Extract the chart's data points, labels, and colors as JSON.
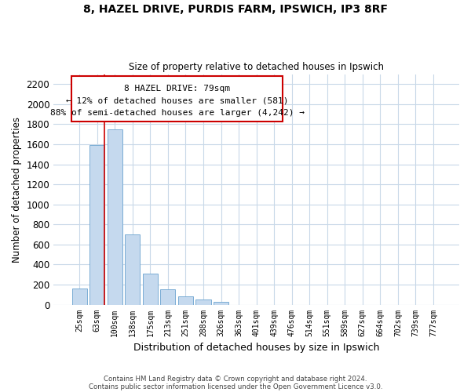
{
  "title1": "8, HAZEL DRIVE, PURDIS FARM, IPSWICH, IP3 8RF",
  "title2": "Size of property relative to detached houses in Ipswich",
  "xlabel": "Distribution of detached houses by size in Ipswich",
  "ylabel": "Number of detached properties",
  "bar_labels": [
    "25sqm",
    "63sqm",
    "100sqm",
    "138sqm",
    "175sqm",
    "213sqm",
    "251sqm",
    "288sqm",
    "326sqm",
    "363sqm",
    "401sqm",
    "439sqm",
    "476sqm",
    "514sqm",
    "551sqm",
    "589sqm",
    "627sqm",
    "664sqm",
    "702sqm",
    "739sqm",
    "777sqm"
  ],
  "bar_values": [
    160,
    1590,
    1750,
    700,
    310,
    155,
    80,
    50,
    25,
    0,
    0,
    0,
    0,
    0,
    0,
    0,
    0,
    0,
    0,
    0,
    0
  ],
  "bar_color": "#c5d9ee",
  "bar_edge_color": "#7aadd4",
  "highlight_line_color": "#cc0000",
  "ylim": [
    0,
    2300
  ],
  "yticks": [
    0,
    200,
    400,
    600,
    800,
    1000,
    1200,
    1400,
    1600,
    1800,
    2000,
    2200
  ],
  "annotation_line1": "8 HAZEL DRIVE: 79sqm",
  "annotation_line2": "← 12% of detached houses are smaller (581)",
  "annotation_line3": "88% of semi-detached houses are larger (4,242) →",
  "footer1": "Contains HM Land Registry data © Crown copyright and database right 2024.",
  "footer2": "Contains public sector information licensed under the Open Government Licence v3.0.",
  "background_color": "#ffffff",
  "grid_color": "#c8d8e8"
}
